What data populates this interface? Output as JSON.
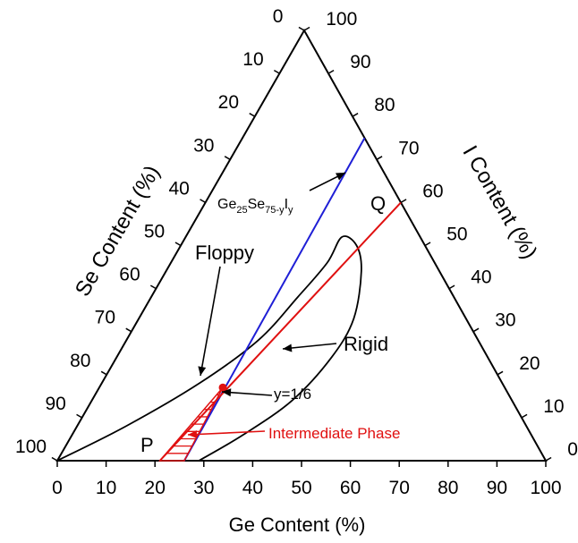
{
  "chart_data": {
    "type": "ternary",
    "axes": {
      "bottom": {
        "label": "Ge Content (%)",
        "ticks": [
          0,
          10,
          20,
          30,
          40,
          50,
          60,
          70,
          80,
          90,
          100
        ]
      },
      "left": {
        "label": "Se Content (%)",
        "ticks": [
          0,
          10,
          20,
          30,
          40,
          50,
          60,
          70,
          80,
          90,
          100
        ]
      },
      "right": {
        "label": "I Content (%)",
        "ticks": [
          0,
          10,
          20,
          30,
          40,
          50,
          60,
          70,
          80,
          90,
          100
        ]
      }
    },
    "lines": [
      {
        "label": "Ge25Se75-yIy",
        "color": "#1f1fd6",
        "from": {
          "ge": 26,
          "i": 0
        },
        "to": {
          "ge": 25,
          "i": 75
        }
      },
      {
        "label": "P–Q",
        "color": "#e01010",
        "from": {
          "ge": 21,
          "i": 0
        },
        "to": {
          "ge": 40,
          "i": 60
        }
      }
    ],
    "region_boundary": {
      "color": "#000000",
      "points": [
        {
          "ge": 0,
          "i": 0
        },
        {
          "ge": 10,
          "i": 8
        },
        {
          "ge": 20,
          "i": 18
        },
        {
          "ge": 27,
          "i": 28
        },
        {
          "ge": 30,
          "i": 38
        },
        {
          "ge": 32,
          "i": 46
        },
        {
          "ge": 32,
          "i": 52
        },
        {
          "ge": 36,
          "i": 50
        },
        {
          "ge": 40,
          "i": 44
        },
        {
          "ge": 44,
          "i": 33
        },
        {
          "ge": 44,
          "i": 24
        },
        {
          "ge": 41,
          "i": 14
        },
        {
          "ge": 35,
          "i": 6
        },
        {
          "ge": 29,
          "i": 0
        }
      ]
    },
    "intermediate_phase_region": {
      "color": "#e01010",
      "points": [
        {
          "ge": 21,
          "i": 0
        },
        {
          "ge": 26,
          "i": 0
        },
        {
          "ge": 25.3,
          "i": 17
        }
      ]
    },
    "points": [
      {
        "label": "y=1/6",
        "ge": 25.3,
        "i": 17,
        "color": "#e01010"
      }
    ],
    "annotations": [
      {
        "text": "Floppy"
      },
      {
        "text": "Rigid"
      },
      {
        "text": "Intermediate Phase",
        "color": "#e01010"
      },
      {
        "text": "P"
      },
      {
        "text": "Q"
      },
      {
        "text": "y=1/6"
      }
    ],
    "compound_label": {
      "base": "Ge",
      "sub1": "25",
      "mid": "Se",
      "sub2": "75-y",
      "end": "I",
      "sub3": "y"
    }
  }
}
